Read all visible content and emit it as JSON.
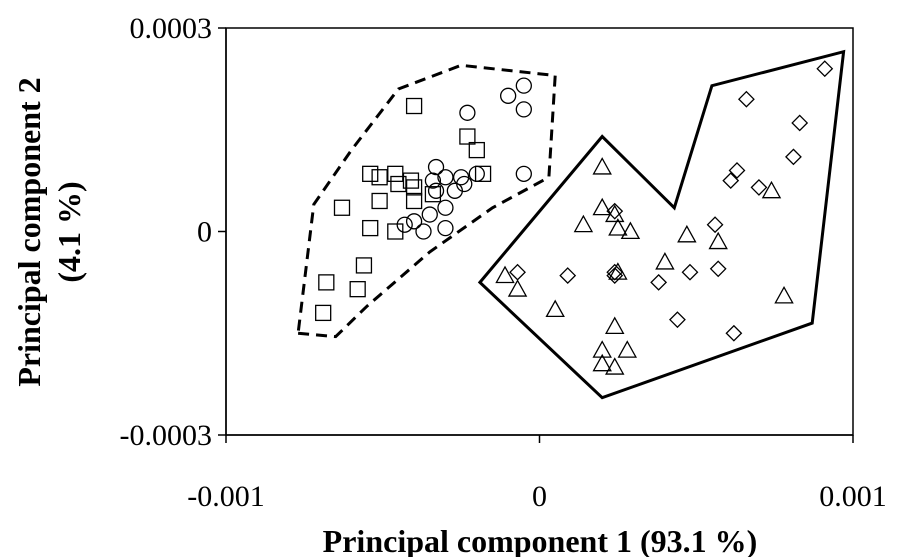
{
  "chart_data": {
    "type": "scatter",
    "title": "",
    "xlabel": "Principal component 1 (93.1 %)",
    "ylabel_lines": [
      "Principal component 2",
      "(4.1 %)"
    ],
    "xlim": [
      -0.001,
      0.001
    ],
    "ylim": [
      -0.0003,
      0.0003
    ],
    "xticks": [
      {
        "value": -0.001,
        "label": "-0.001"
      },
      {
        "value": 0,
        "label": "0"
      },
      {
        "value": 0.001,
        "label": "0.001"
      }
    ],
    "yticks": [
      {
        "value": 0.0003,
        "label": "0.0003"
      },
      {
        "value": 0,
        "label": "0"
      },
      {
        "value": -0.0003,
        "label": "-0.0003"
      }
    ],
    "grid": false,
    "legend": "none",
    "series": [
      {
        "marker": "circle",
        "points": [
          [
            -0.0001,
            0.0002
          ],
          [
            -5e-05,
            0.000215
          ],
          [
            -5e-05,
            0.00018
          ],
          [
            -0.00023,
            0.000175
          ],
          [
            -0.00033,
            9.5e-05
          ],
          [
            -0.00034,
            7.5e-05
          ],
          [
            -0.00025,
            8e-05
          ],
          [
            -0.0002,
            8.5e-05
          ],
          [
            -0.00024,
            7e-05
          ],
          [
            -0.00027,
            6e-05
          ],
          [
            -0.0003,
            8e-05
          ],
          [
            -0.00033,
            6e-05
          ],
          [
            -0.00035,
            2.5e-05
          ],
          [
            -0.0003,
            3.5e-05
          ],
          [
            -0.0004,
            1.5e-05
          ],
          [
            -0.00043,
            1e-05
          ],
          [
            -0.00037,
            0.0
          ],
          [
            -0.0003,
            5e-06
          ],
          [
            -5e-05,
            8.5e-05
          ]
        ]
      },
      {
        "marker": "square",
        "points": [
          [
            -0.0004,
            0.000185
          ],
          [
            -0.00023,
            0.00014
          ],
          [
            -0.0002,
            0.00012
          ],
          [
            -0.00046,
            8.5e-05
          ],
          [
            -0.00051,
            8e-05
          ],
          [
            -0.00054,
            8.5e-05
          ],
          [
            -0.00041,
            7.5e-05
          ],
          [
            -0.00045,
            7e-05
          ],
          [
            -0.0004,
            6.5e-05
          ],
          [
            -0.00034,
            5.5e-05
          ],
          [
            -0.00051,
            4.5e-05
          ],
          [
            -0.0004,
            4.5e-05
          ],
          [
            -0.00063,
            3.5e-05
          ],
          [
            -0.00054,
            5e-06
          ],
          [
            -0.00046,
            0.0
          ],
          [
            -0.00056,
            -5e-05
          ],
          [
            -0.00068,
            -7.5e-05
          ],
          [
            -0.00058,
            -8.5e-05
          ],
          [
            -0.00069,
            -0.00012
          ],
          [
            -0.00018,
            8.5e-05
          ]
        ]
      },
      {
        "marker": "triangle",
        "points": [
          [
            0.0002,
            9.5e-05
          ],
          [
            0.0002,
            3.5e-05
          ],
          [
            0.00024,
            2.5e-05
          ],
          [
            0.00014,
            1e-05
          ],
          [
            0.00025,
            5e-06
          ],
          [
            0.00029,
            0.0
          ],
          [
            0.00047,
            -5e-06
          ],
          [
            0.00057,
            -1.5e-05
          ],
          [
            0.0004,
            -4.5e-05
          ],
          [
            -0.00011,
            -6.5e-05
          ],
          [
            -7e-05,
            -8.5e-05
          ],
          [
            5e-05,
            -0.000115
          ],
          [
            0.00024,
            -0.00014
          ],
          [
            0.0002,
            -0.000175
          ],
          [
            0.00028,
            -0.000175
          ],
          [
            0.0002,
            -0.000195
          ],
          [
            0.00024,
            -0.0002
          ],
          [
            0.00074,
            6e-05
          ],
          [
            0.00078,
            -9.5e-05
          ],
          [
            0.00025,
            -6e-05
          ]
        ]
      },
      {
        "marker": "diamond",
        "points": [
          [
            0.00091,
            0.00024
          ],
          [
            0.00066,
            0.000195
          ],
          [
            0.00083,
            0.00016
          ],
          [
            0.00081,
            0.00011
          ],
          [
            0.00063,
            9e-05
          ],
          [
            0.00061,
            7.5e-05
          ],
          [
            0.0007,
            6.5e-05
          ],
          [
            0.00056,
            1e-05
          ],
          [
            0.00024,
            3e-05
          ],
          [
            0.00024,
            -6e-05
          ],
          [
            0.00057,
            -5.5e-05
          ],
          [
            -7e-05,
            -6e-05
          ],
          [
            9e-05,
            -6.5e-05
          ],
          [
            0.00024,
            -6.5e-05
          ],
          [
            0.00038,
            -7.5e-05
          ],
          [
            0.00048,
            -6e-05
          ],
          [
            0.00044,
            -0.00013
          ],
          [
            0.00062,
            -0.00015
          ]
        ]
      }
    ],
    "hulls": [
      {
        "style": "dashed",
        "points": [
          [
            -0.00077,
            -0.00015
          ],
          [
            -0.00065,
            -0.000155
          ],
          [
            -0.00055,
            -0.00011
          ],
          [
            -0.00035,
            -3e-05
          ],
          [
            -0.00015,
            3.5e-05
          ],
          [
            3e-05,
            8e-05
          ],
          [
            5e-05,
            0.00023
          ],
          [
            -0.00025,
            0.000245
          ],
          [
            -0.00045,
            0.00021
          ],
          [
            -0.0006,
            0.00012
          ],
          [
            -0.00072,
            4e-05
          ]
        ]
      },
      {
        "style": "solid",
        "points": [
          [
            -0.00019,
            -7.5e-05
          ],
          [
            0.0002,
            0.00014
          ],
          [
            0.00043,
            3.5e-05
          ],
          [
            0.00055,
            0.000215
          ],
          [
            0.00097,
            0.000265
          ],
          [
            0.00087,
            -0.000135
          ],
          [
            0.0002,
            -0.000245
          ]
        ]
      }
    ]
  }
}
